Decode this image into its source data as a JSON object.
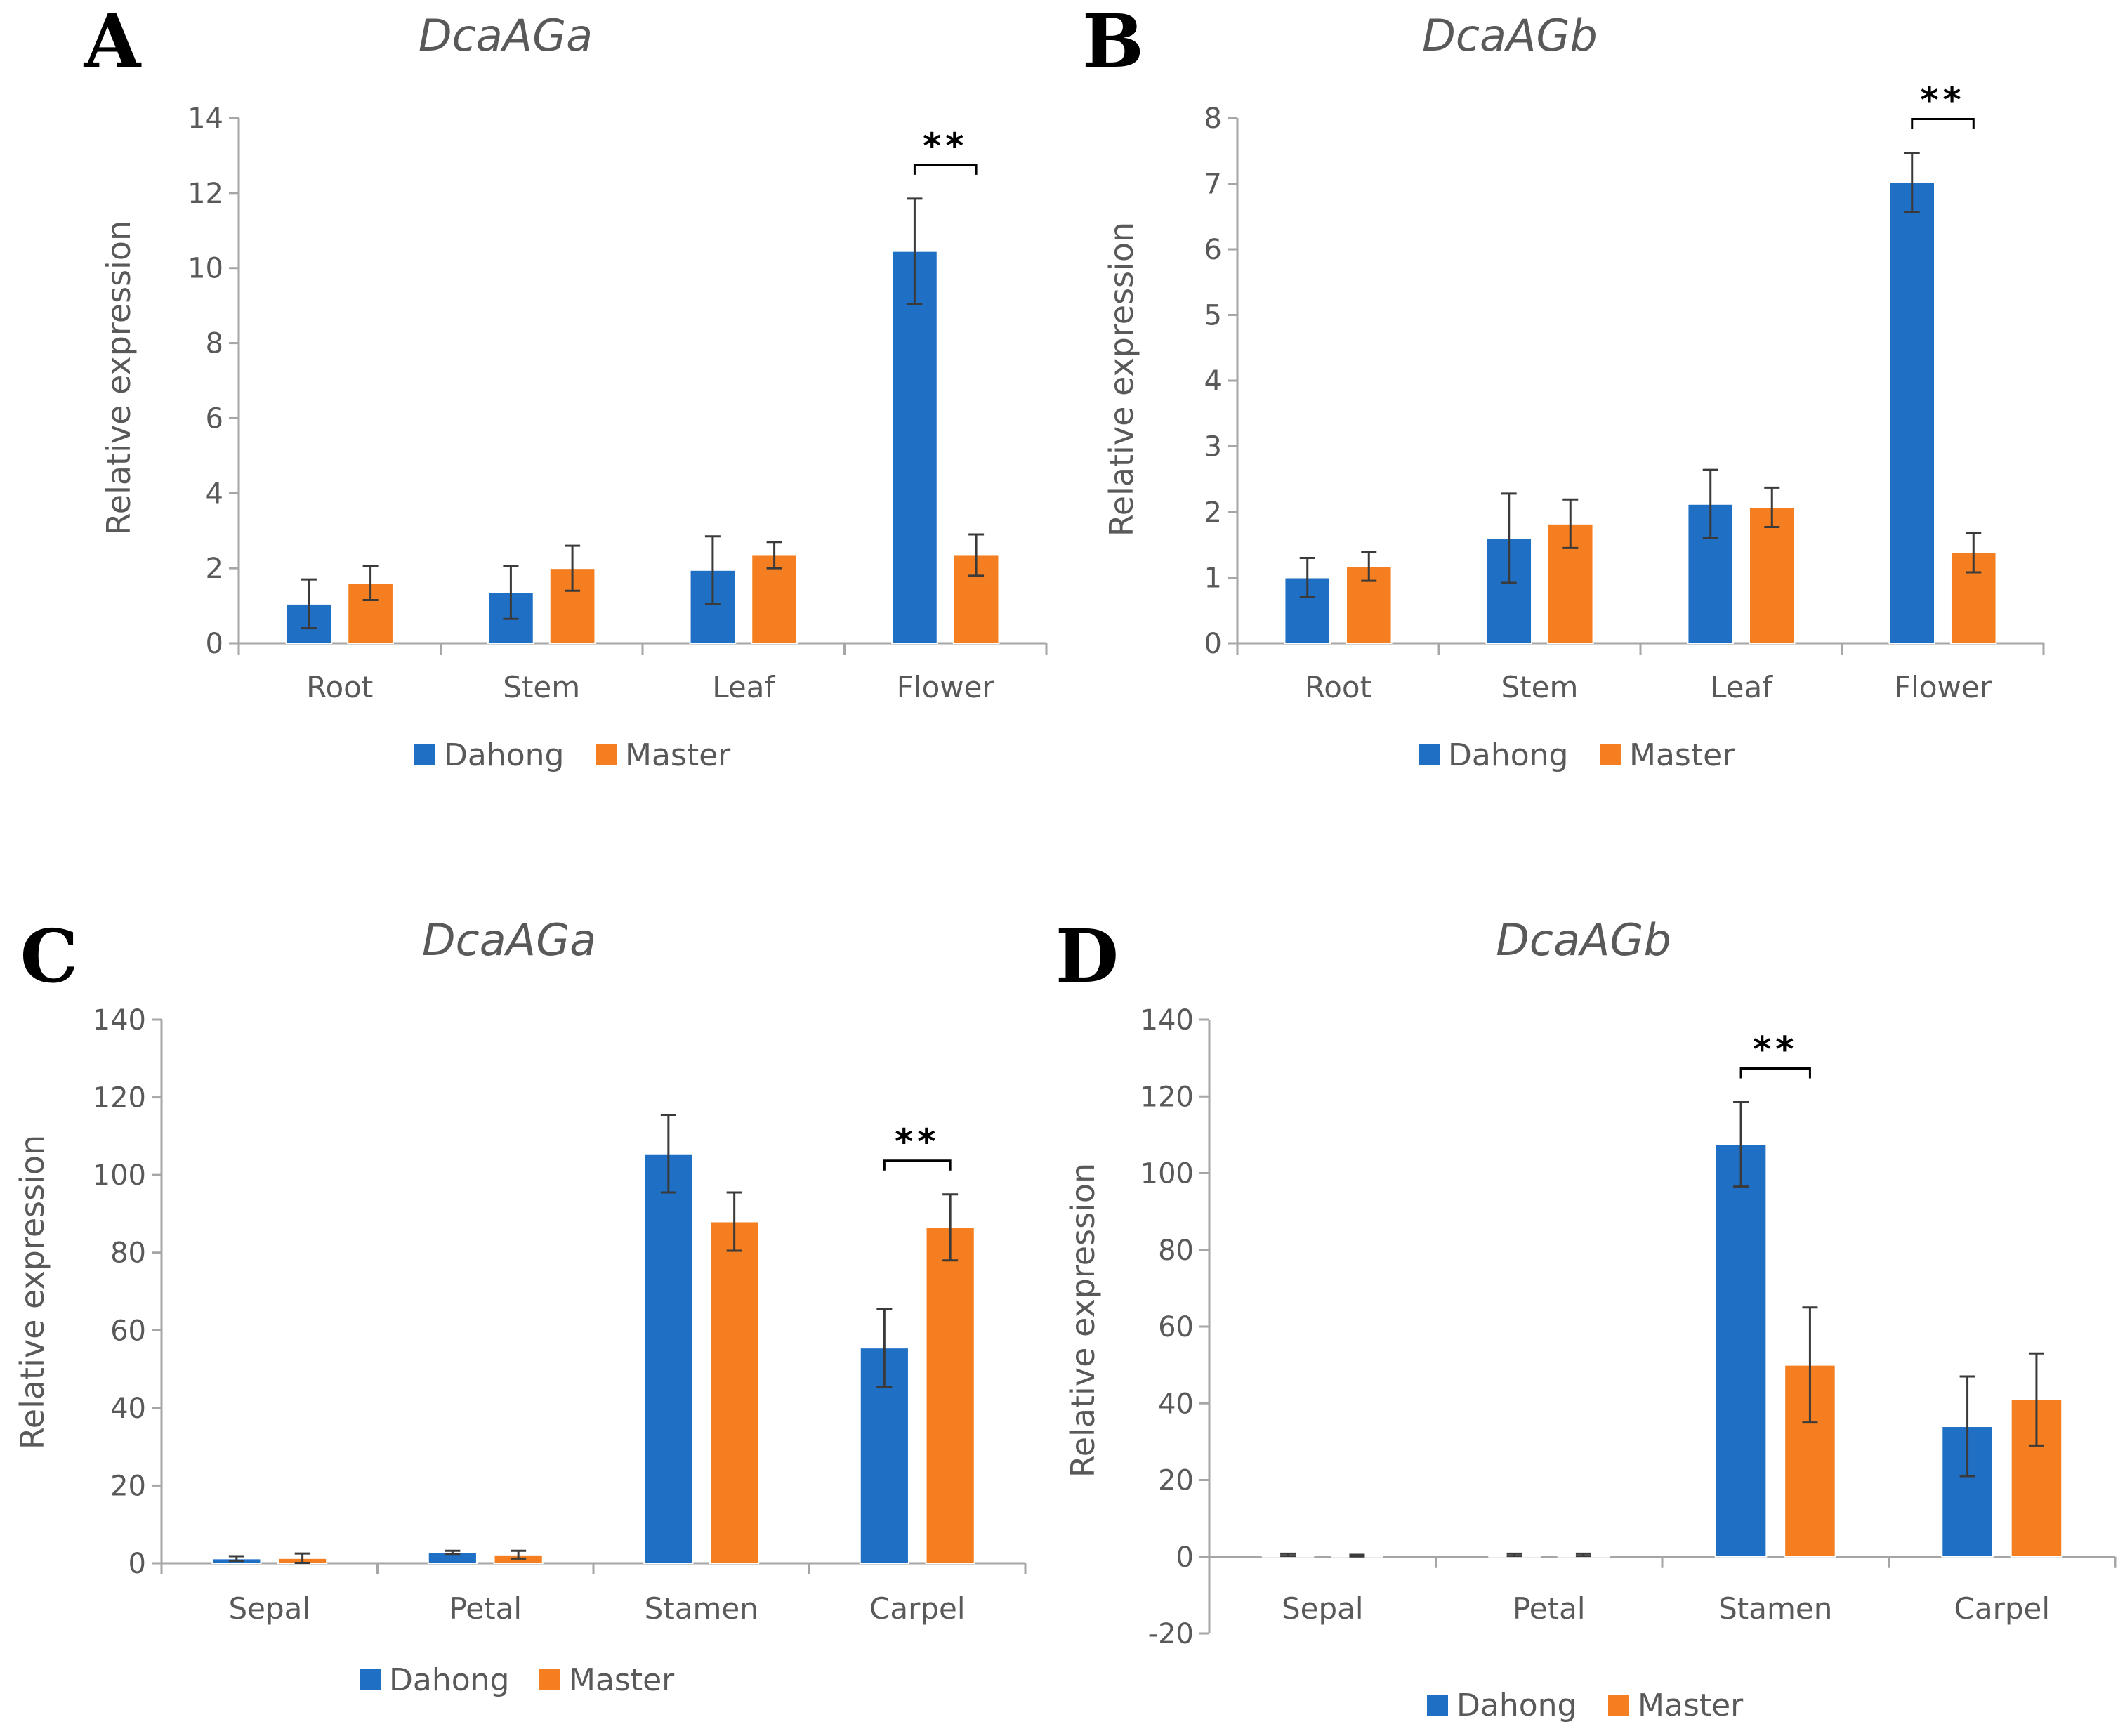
{
  "figure": {
    "background": "#ffffff"
  },
  "colors": {
    "Dahong": "#1f6fc5",
    "Master": "#f57f20"
  },
  "chart_data": [
    {
      "panel": "A",
      "type": "bar",
      "title": "DcaAGa",
      "ylabel": "Relative expression",
      "ylim": [
        0,
        14
      ],
      "yticks": [
        0,
        2,
        4,
        6,
        8,
        10,
        12,
        14
      ],
      "categories": [
        "Root",
        "Stem",
        "Leaf",
        "Flower"
      ],
      "series": [
        {
          "name": "Dahong",
          "color": "#1f6fc5",
          "values": [
            1.05,
            1.35,
            1.95,
            10.45
          ],
          "errors": [
            0.65,
            0.7,
            0.9,
            1.4
          ]
        },
        {
          "name": "Master",
          "color": "#f57f20",
          "values": [
            1.6,
            2.0,
            2.35,
            2.35
          ],
          "errors": [
            0.45,
            0.6,
            0.35,
            0.55
          ]
        }
      ],
      "significance": [
        {
          "category": "Flower",
          "label": "**"
        }
      ],
      "legend": "bottom"
    },
    {
      "panel": "B",
      "type": "bar",
      "title": "DcaAGb",
      "ylabel": "Relative expression",
      "ylim": [
        0,
        8
      ],
      "yticks": [
        0,
        1,
        2,
        3,
        4,
        5,
        6,
        7,
        8
      ],
      "categories": [
        "Root",
        "Stem",
        "Leaf",
        "Flower"
      ],
      "series": [
        {
          "name": "Dahong",
          "color": "#1f6fc5",
          "values": [
            1.0,
            1.6,
            2.12,
            7.02
          ],
          "errors": [
            0.3,
            0.68,
            0.52,
            0.45
          ]
        },
        {
          "name": "Master",
          "color": "#f57f20",
          "values": [
            1.17,
            1.82,
            2.07,
            1.38
          ],
          "errors": [
            0.22,
            0.37,
            0.3,
            0.3
          ]
        }
      ],
      "significance": [
        {
          "category": "Flower",
          "label": "**"
        }
      ],
      "legend": "bottom"
    },
    {
      "panel": "C",
      "type": "bar",
      "title": "DcaAGa",
      "ylabel": "Relative expression",
      "ylim": [
        0,
        140
      ],
      "yticks": [
        0,
        20,
        40,
        60,
        80,
        100,
        120,
        140
      ],
      "categories": [
        "Sepal",
        "Petal",
        "Stamen",
        "Carpel"
      ],
      "series": [
        {
          "name": "Dahong",
          "color": "#1f6fc5",
          "values": [
            1.2,
            2.8,
            105.5,
            55.5
          ],
          "errors": [
            0.6,
            0.4,
            10,
            10
          ]
        },
        {
          "name": "Master",
          "color": "#f57f20",
          "values": [
            1.3,
            2.2,
            88,
            86.5
          ],
          "errors": [
            1.2,
            1.0,
            7.5,
            8.5
          ]
        }
      ],
      "significance": [
        {
          "category": "Carpel",
          "label": "**"
        }
      ],
      "legend": "bottom"
    },
    {
      "panel": "D",
      "type": "bar",
      "title": "DcaAGb",
      "ylabel": "Relative expression",
      "ylim": [
        -20,
        140
      ],
      "yticks": [
        -20,
        0,
        20,
        40,
        60,
        80,
        100,
        120,
        140
      ],
      "categories": [
        "Sepal",
        "Petal",
        "Stamen",
        "Carpel"
      ],
      "series": [
        {
          "name": "Dahong",
          "color": "#1f6fc5",
          "values": [
            0.5,
            0.5,
            107.5,
            34
          ],
          "errors": [
            0.3,
            0.3,
            11,
            13
          ]
        },
        {
          "name": "Master",
          "color": "#f57f20",
          "values": [
            0.3,
            0.5,
            50,
            41
          ],
          "errors": [
            0.2,
            0.3,
            15,
            12
          ]
        }
      ],
      "significance": [
        {
          "category": "Stamen",
          "label": "**"
        }
      ],
      "legend": "bottom"
    }
  ]
}
